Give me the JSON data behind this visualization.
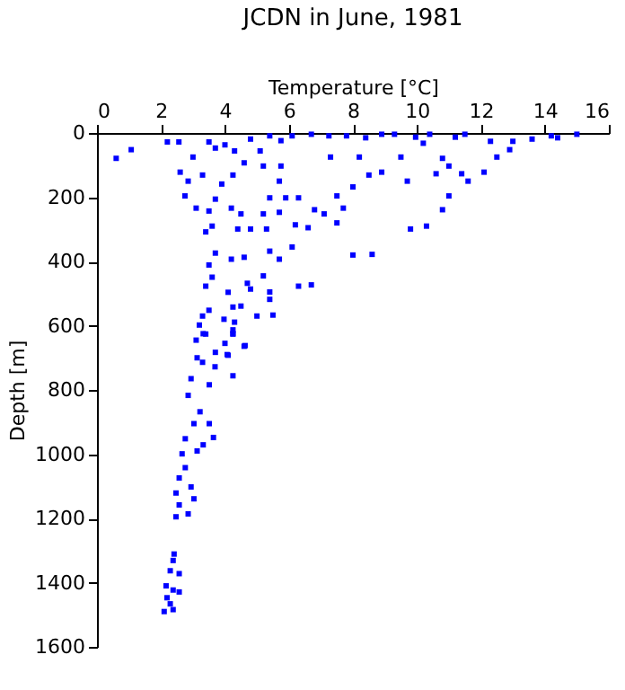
{
  "chart_data": {
    "type": "scatter",
    "title": "JCDN in June, 1981",
    "xlabel": "Temperature [°C]",
    "ylabel": "Depth [m]",
    "xlim": [
      0,
      16
    ],
    "xticks": [
      0,
      2,
      4,
      6,
      8,
      10,
      12,
      14,
      16
    ],
    "ylim": [
      1600,
      0
    ],
    "yticks": [
      0,
      200,
      400,
      600,
      800,
      1000,
      1200,
      1400,
      1600
    ],
    "grid": false,
    "marker": "square",
    "series": [
      {
        "color": "#0000ff",
        "x": [
          1.07,
          0.6,
          2.2,
          2.56,
          3.5,
          4.0,
          4.8,
          5.4,
          5.75,
          6.1,
          6.7,
          7.25,
          7.8,
          8.4,
          8.9,
          9.3,
          9.96,
          10.4,
          11.2,
          11.5,
          12.3,
          13.0,
          13.6,
          14.2,
          14.4,
          15.0,
          12.9,
          12.5,
          12.1,
          11.6,
          11.4,
          11.0,
          10.6,
          10.8,
          10.2,
          9.5,
          8.9,
          8.5,
          8.2,
          8.0,
          7.5,
          7.3,
          9.7,
          11.0,
          10.8,
          10.3,
          9.8,
          8.6,
          8.0,
          6.7,
          6.3,
          5.4,
          5.2,
          5.7,
          5.4,
          6.1,
          6.8,
          7.1,
          7.5,
          7.7,
          6.3,
          5.9,
          5.4,
          5.7,
          5.2,
          4.5,
          4.4,
          4.8,
          5.3,
          6.2,
          6.6,
          5.7,
          5.75,
          5.2,
          5.1,
          4.6,
          4.25,
          3.9,
          3.3,
          2.85,
          2.6,
          3.0,
          3.7,
          4.3,
          2.75,
          3.1,
          3.5,
          3.7,
          4.2,
          3.6,
          3.4,
          3.7,
          4.2,
          4.6,
          3.5,
          3.6,
          3.4,
          4.1,
          4.7,
          4.8,
          5.4,
          4.25,
          4.5,
          3.5,
          5.0,
          5.5,
          3.3,
          3.2,
          3.97,
          4.3,
          4.25,
          3.4,
          3.1,
          4.0,
          4.6,
          3.7,
          4.1,
          3.3,
          4.25,
          3.32,
          4.25,
          4.63,
          3.13,
          4.07,
          3.69,
          4.25,
          2.94,
          3.51,
          2.85,
          3.22,
          3.03,
          3.51,
          2.76,
          3.32,
          3.64,
          2.66,
          3.13,
          2.76,
          2.57,
          2.94,
          2.47,
          3.03,
          2.57,
          2.85,
          2.47,
          2.41,
          2.38,
          2.29,
          2.57,
          2.16,
          2.38,
          2.57,
          2.19,
          2.29,
          2.1,
          2.38
        ],
        "values": [
          52,
          79,
          28,
          28,
          28,
          37,
          19,
          9,
          24,
          9,
          4,
          9,
          9,
          15,
          4,
          4,
          13,
          4,
          13,
          4,
          26,
          26,
          19,
          9,
          15,
          4,
          52,
          75,
          122,
          150,
          127,
          103,
          127,
          79,
          32,
          75,
          122,
          131,
          75,
          168,
          196,
          75,
          150,
          196,
          239,
          290,
          299,
          378,
          380,
          473,
          477,
          495,
          445,
          393,
          368,
          355,
          239,
          252,
          280,
          234,
          202,
          202,
          202,
          247,
          252,
          252,
          299,
          299,
          299,
          286,
          295,
          150,
          103,
          103,
          56,
          93,
          131,
          159,
          131,
          150,
          122,
          75,
          47,
          56,
          196,
          234,
          243,
          206,
          234,
          290,
          308,
          374,
          393,
          387,
          411,
          449,
          477,
          496,
          468,
          486,
          518,
          542,
          539,
          552,
          570,
          567,
          570,
          598,
          580,
          589,
          626,
          626,
          645,
          655,
          664,
          683,
          692,
          714,
          613,
          625,
          625,
          662,
          700,
          690,
          728,
          756,
          765,
          784,
          817,
          868,
          905,
          905,
          952,
          971,
          948,
          999,
          990,
          1042,
          1074,
          1102,
          1121,
          1139,
          1158,
          1186,
          1195,
          1311,
          1331,
          1363,
          1372,
          1410,
          1423,
          1429,
          1447,
          1466,
          1490,
          1484
        ]
      }
    ]
  }
}
